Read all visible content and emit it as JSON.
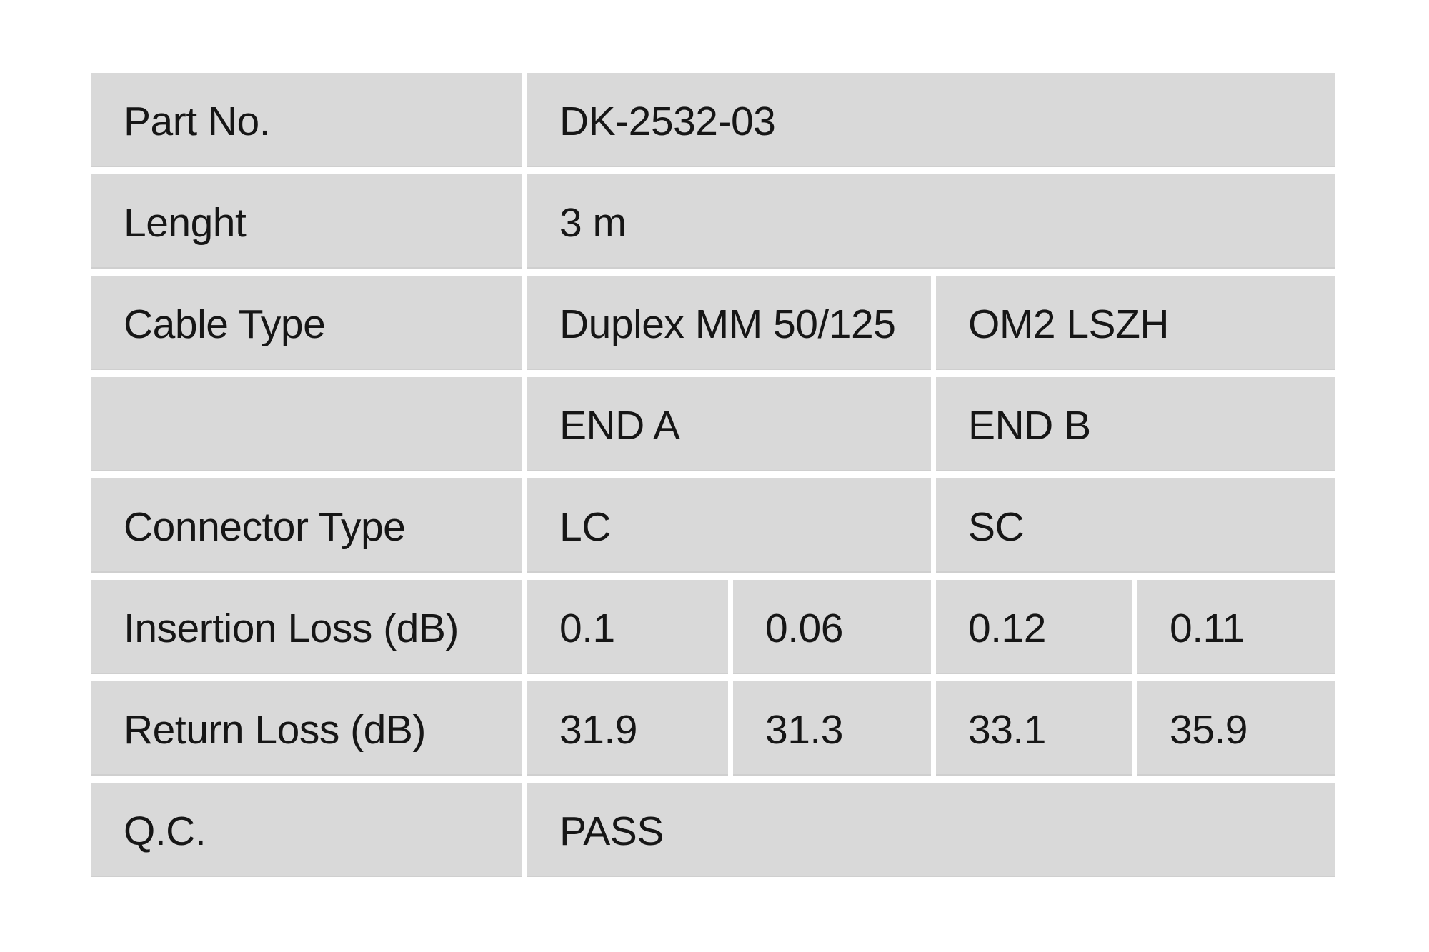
{
  "table": {
    "title": "fiber-patch-cable-test-report",
    "colors": {
      "cell_bg": "#d9d9d9",
      "page_bg": "#ffffff",
      "text": "#161616"
    },
    "rows": [
      {
        "label": "Part No.",
        "cells": [
          {
            "text": "DK-2532-03"
          }
        ]
      },
      {
        "label": "Lenght",
        "cells": [
          {
            "text": "3 m"
          }
        ]
      },
      {
        "label": "Cable Type",
        "cells": [
          {
            "text": "Duplex MM 50/125"
          },
          {
            "text": "OM2 LSZH"
          }
        ]
      },
      {
        "label": "",
        "cells": [
          {
            "text": "END A"
          },
          {
            "text": "END B"
          }
        ]
      },
      {
        "label": "Connector Type",
        "cells": [
          {
            "text": "LC"
          },
          {
            "text": "SC"
          }
        ]
      },
      {
        "label": "Insertion Loss (dB)",
        "cells": [
          {
            "text": "0.1"
          },
          {
            "text": "0.06"
          },
          {
            "text": "0.12"
          },
          {
            "text": "0.11"
          }
        ]
      },
      {
        "label": "Return Loss (dB)",
        "cells": [
          {
            "text": "31.9"
          },
          {
            "text": "31.3"
          },
          {
            "text": "33.1"
          },
          {
            "text": "35.9"
          }
        ]
      },
      {
        "label": "Q.C.",
        "cells": [
          {
            "text": "PASS"
          }
        ]
      }
    ]
  }
}
